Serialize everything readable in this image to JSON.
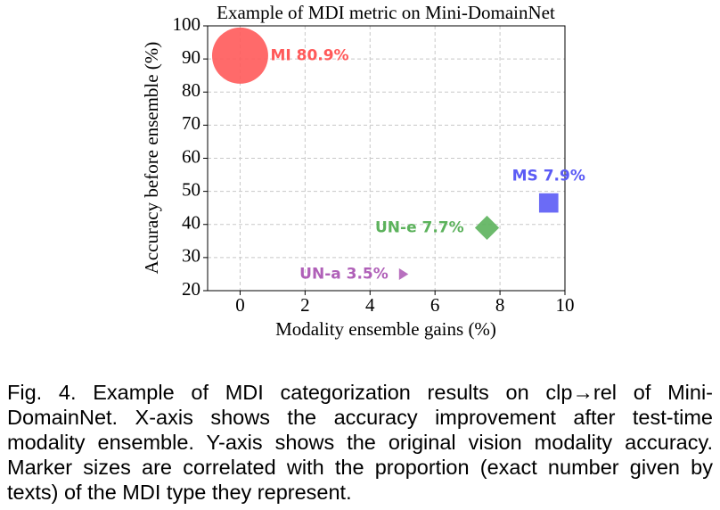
{
  "chart_data": {
    "type": "scatter",
    "title": "Example of MDI metric on Mini-DomainNet",
    "xlabel": "Modality ensemble gains (%)",
    "ylabel": "Accuracy before ensemble (%)",
    "xlim": [
      -1,
      10
    ],
    "ylim": [
      20,
      100
    ],
    "xticks": [
      0,
      2,
      4,
      6,
      8,
      10
    ],
    "yticks": [
      20,
      30,
      40,
      50,
      60,
      70,
      80,
      90,
      100
    ],
    "grid": true,
    "series": [
      {
        "label": "MI 80.9%",
        "size": 80.9,
        "x": [
          0
        ],
        "y": [
          91
        ],
        "color": "#ff5a5a",
        "marker": "circle"
      },
      {
        "label": "MS 7.9%",
        "size": 7.9,
        "x": [
          9.5
        ],
        "y": [
          46.5
        ],
        "color": "#5b5bf5",
        "marker": "square"
      },
      {
        "label": "UN-e 7.7%",
        "size": 7.7,
        "x": [
          7.6
        ],
        "y": [
          39
        ],
        "color": "#5cb25c",
        "marker": "diamond"
      },
      {
        "label": "UN-a 3.5%",
        "size": 3.5,
        "x": [
          5.0
        ],
        "y": [
          25
        ],
        "color": "#b060b8",
        "marker": "triangle"
      }
    ]
  },
  "caption": "Fig. 4. Example of MDI categorization results on clp→rel of Mini-DomainNet. X-axis shows the accuracy improvement after test-time modality ensemble. Y-axis shows the original vision modality accuracy. Marker sizes are correlated with the proportion (exact number given by texts) of the MDI type they represent."
}
